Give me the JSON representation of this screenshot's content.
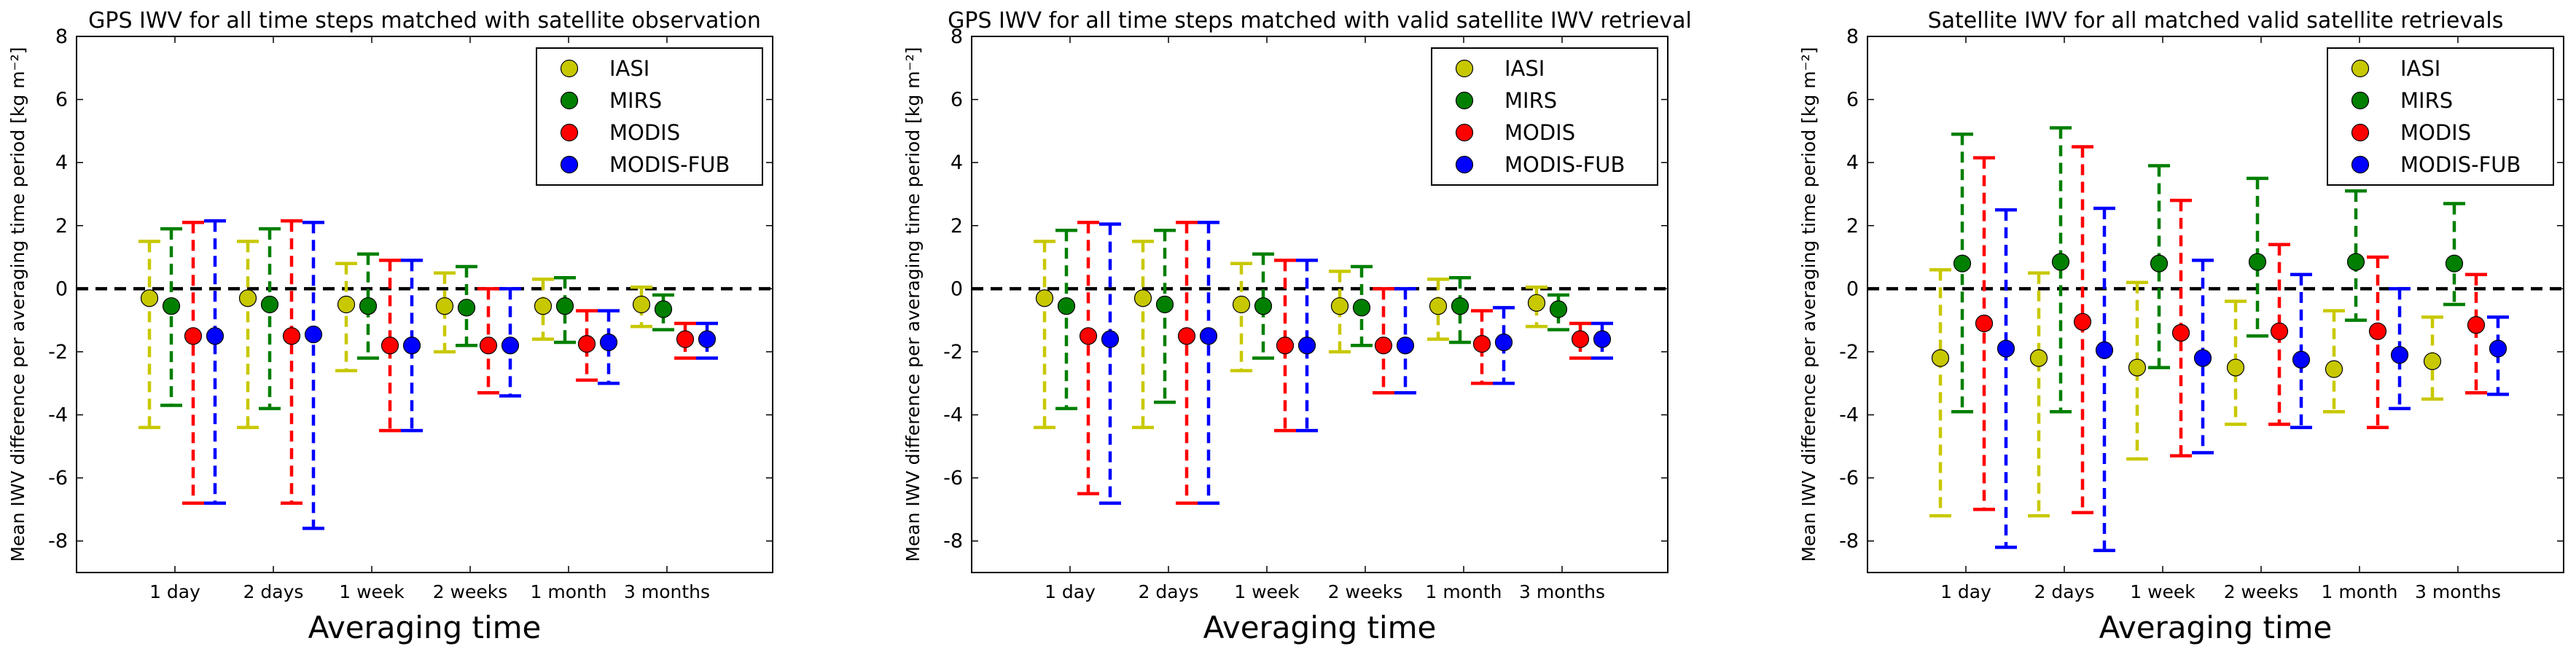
{
  "chart_data": [
    {
      "type": "errorbar",
      "title": "GPS IWV for all time steps matched with satellite observation",
      "xlabel": "Averaging time",
      "ylabel": "Mean IWV difference per averaging time period [kg m⁻²]",
      "ylim": [
        -9,
        8
      ],
      "yticks": [
        -8,
        -6,
        -4,
        -2,
        0,
        2,
        4,
        6,
        8
      ],
      "categories": [
        "1 day",
        "2 days",
        "1 week",
        "2 weeks",
        "1 month",
        "3 months"
      ],
      "legend_position": "top-right",
      "series": [
        {
          "name": "IASI",
          "color": "#c8c800",
          "values": [
            -0.3,
            -0.3,
            -0.5,
            -0.55,
            -0.55,
            -0.5
          ],
          "upper": [
            1.5,
            1.5,
            0.8,
            0.5,
            0.3,
            0.05
          ],
          "lower": [
            -4.4,
            -4.4,
            -2.6,
            -2.0,
            -1.6,
            -1.2
          ]
        },
        {
          "name": "MIRS",
          "color": "#007f00",
          "values": [
            -0.55,
            -0.5,
            -0.55,
            -0.6,
            -0.55,
            -0.65
          ],
          "upper": [
            1.9,
            1.9,
            1.1,
            0.7,
            0.35,
            -0.2
          ],
          "lower": [
            -3.7,
            -3.8,
            -2.2,
            -1.8,
            -1.7,
            -1.3
          ]
        },
        {
          "name": "MODIS",
          "color": "#ff0000",
          "values": [
            -1.5,
            -1.5,
            -1.8,
            -1.8,
            -1.75,
            -1.6
          ],
          "upper": [
            2.1,
            2.15,
            0.9,
            0.0,
            -0.7,
            -1.1
          ],
          "lower": [
            -6.8,
            -6.8,
            -4.5,
            -3.3,
            -2.9,
            -2.2
          ]
        },
        {
          "name": "MODIS-FUB",
          "color": "#0000ff",
          "values": [
            -1.5,
            -1.45,
            -1.8,
            -1.8,
            -1.7,
            -1.6
          ],
          "upper": [
            2.15,
            2.1,
            0.9,
            0.0,
            -0.7,
            -1.1
          ],
          "lower": [
            -6.8,
            -7.6,
            -4.5,
            -3.4,
            -3.0,
            -2.2
          ]
        }
      ]
    },
    {
      "type": "errorbar",
      "title": "GPS IWV for all time steps matched with valid satellite IWV retrieval",
      "xlabel": "Averaging time",
      "ylabel": "Mean IWV difference per averaging time period [kg m⁻²]",
      "ylim": [
        -9,
        8
      ],
      "yticks": [
        -8,
        -6,
        -4,
        -2,
        0,
        2,
        4,
        6,
        8
      ],
      "categories": [
        "1 day",
        "2 days",
        "1 week",
        "2 weeks",
        "1 month",
        "3 months"
      ],
      "legend_position": "top-right",
      "series": [
        {
          "name": "IASI",
          "color": "#c8c800",
          "values": [
            -0.3,
            -0.3,
            -0.5,
            -0.55,
            -0.55,
            -0.45
          ],
          "upper": [
            1.5,
            1.5,
            0.8,
            0.55,
            0.3,
            0.05
          ],
          "lower": [
            -4.4,
            -4.4,
            -2.6,
            -2.0,
            -1.6,
            -1.2
          ]
        },
        {
          "name": "MIRS",
          "color": "#007f00",
          "values": [
            -0.55,
            -0.5,
            -0.55,
            -0.6,
            -0.55,
            -0.65
          ],
          "upper": [
            1.85,
            1.85,
            1.1,
            0.7,
            0.35,
            -0.2
          ],
          "lower": [
            -3.8,
            -3.6,
            -2.2,
            -1.8,
            -1.7,
            -1.3
          ]
        },
        {
          "name": "MODIS",
          "color": "#ff0000",
          "values": [
            -1.5,
            -1.5,
            -1.8,
            -1.8,
            -1.75,
            -1.6
          ],
          "upper": [
            2.1,
            2.1,
            0.9,
            0.0,
            -0.7,
            -1.1
          ],
          "lower": [
            -6.5,
            -6.8,
            -4.5,
            -3.3,
            -3.0,
            -2.2
          ]
        },
        {
          "name": "MODIS-FUB",
          "color": "#0000ff",
          "values": [
            -1.6,
            -1.5,
            -1.8,
            -1.8,
            -1.7,
            -1.6
          ],
          "upper": [
            2.05,
            2.1,
            0.9,
            0.0,
            -0.6,
            -1.1
          ],
          "lower": [
            -6.8,
            -6.8,
            -4.5,
            -3.3,
            -3.0,
            -2.2
          ]
        }
      ]
    },
    {
      "type": "errorbar",
      "title": "Satellite IWV for all matched valid satellite retrievals",
      "xlabel": "Averaging time",
      "ylabel": "Mean IWV difference per averaging time period [kg m⁻²]",
      "ylim": [
        -9,
        8
      ],
      "yticks": [
        -8,
        -6,
        -4,
        -2,
        0,
        2,
        4,
        6,
        8
      ],
      "categories": [
        "1 day",
        "2 days",
        "1 week",
        "2 weeks",
        "1 month",
        "3 months"
      ],
      "legend_position": "top-right",
      "series": [
        {
          "name": "IASI",
          "color": "#c8c800",
          "values": [
            -2.2,
            -2.2,
            -2.5,
            -2.5,
            -2.55,
            -2.3
          ],
          "upper": [
            0.6,
            0.5,
            0.2,
            -0.4,
            -0.7,
            -0.9
          ],
          "lower": [
            -7.2,
            -7.2,
            -5.4,
            -4.3,
            -3.9,
            -3.5
          ]
        },
        {
          "name": "MIRS",
          "color": "#007f00",
          "values": [
            0.8,
            0.85,
            0.8,
            0.85,
            0.85,
            0.8
          ],
          "upper": [
            4.9,
            5.1,
            3.9,
            3.5,
            3.1,
            2.7
          ],
          "lower": [
            -3.9,
            -3.9,
            -2.5,
            -1.5,
            -1.0,
            -0.5
          ]
        },
        {
          "name": "MODIS",
          "color": "#ff0000",
          "values": [
            -1.1,
            -1.05,
            -1.4,
            -1.35,
            -1.35,
            -1.15
          ],
          "upper": [
            4.15,
            4.5,
            2.8,
            1.4,
            1.0,
            0.45
          ],
          "lower": [
            -7.0,
            -7.1,
            -5.3,
            -4.3,
            -4.4,
            -3.3
          ]
        },
        {
          "name": "MODIS-FUB",
          "color": "#0000ff",
          "values": [
            -1.9,
            -1.95,
            -2.2,
            -2.25,
            -2.1,
            -1.9
          ],
          "upper": [
            2.5,
            2.55,
            0.9,
            0.45,
            0.0,
            -0.9
          ],
          "lower": [
            -8.2,
            -8.3,
            -5.2,
            -4.4,
            -3.8,
            -3.35
          ]
        }
      ]
    }
  ]
}
